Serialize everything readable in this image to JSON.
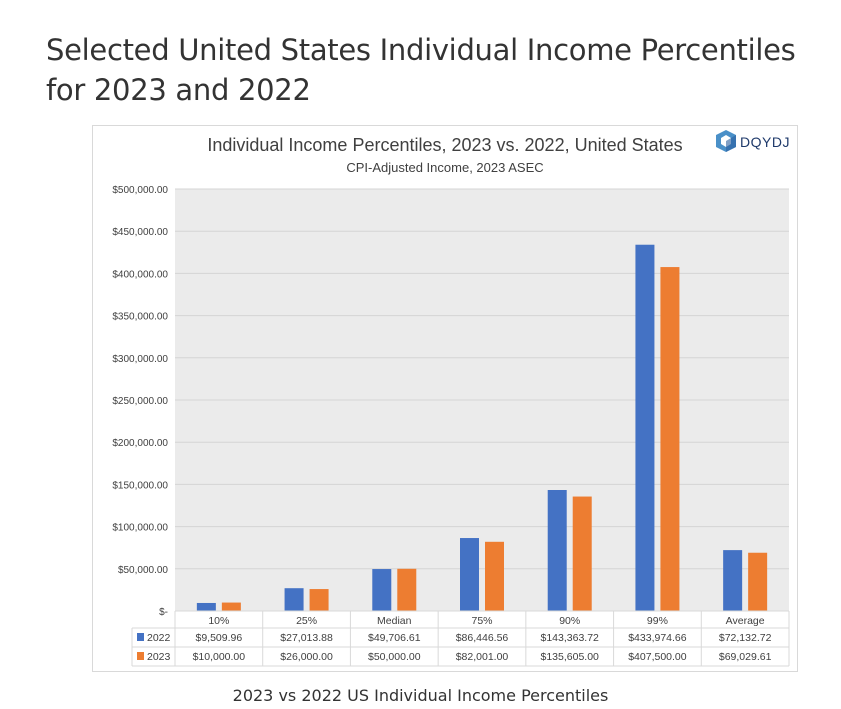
{
  "page_title": "Selected United States Individual Income Percentiles for 2023 and 2022",
  "caption": "2023 vs 2022 US Individual Income Percentiles",
  "logo_text": "DQYDJ",
  "chart_data": {
    "type": "bar",
    "title": "Individual Income Percentiles, 2023 vs. 2022, United States",
    "subtitle": "CPI-Adjusted Income, 2023 ASEC",
    "categories": [
      "10%",
      "25%",
      "Median",
      "75%",
      "90%",
      "99%",
      "Average"
    ],
    "series": [
      {
        "name": "2022",
        "color": "#4472c4",
        "values": [
          9509.96,
          27013.88,
          49706.61,
          86446.56,
          143363.72,
          433974.66,
          72132.72
        ],
        "labels": [
          "$9,509.96",
          "$27,013.88",
          "$49,706.61",
          "$86,446.56",
          "$143,363.72",
          "$433,974.66",
          "$72,132.72"
        ]
      },
      {
        "name": "2023",
        "color": "#ed7d31",
        "values": [
          10000,
          26000,
          50000,
          82001,
          135605,
          407500,
          69029.61
        ],
        "labels": [
          "$10,000.00",
          "$26,000.00",
          "$50,000.00",
          "$82,001.00",
          "$135,605.00",
          "$407,500.00",
          "$69,029.61"
        ]
      }
    ],
    "ylim": [
      0,
      500000
    ],
    "yticks": [
      0,
      50000,
      100000,
      150000,
      200000,
      250000,
      300000,
      350000,
      400000,
      450000,
      500000
    ],
    "ytick_labels": [
      "$-",
      "$50,000.00",
      "$100,000.00",
      "$150,000.00",
      "$200,000.00",
      "$250,000.00",
      "$300,000.00",
      "$350,000.00",
      "$400,000.00",
      "$450,000.00",
      "$500,000.00"
    ],
    "grid": true,
    "legend": "data-table"
  }
}
